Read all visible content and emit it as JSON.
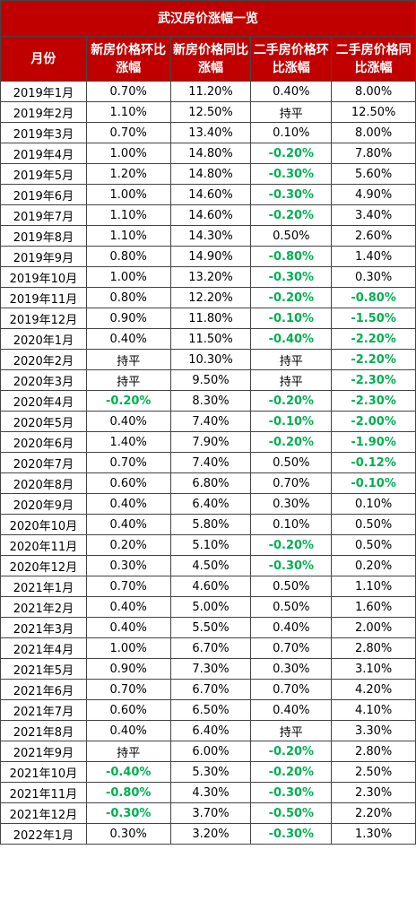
{
  "title": "武汉房价涨幅一览",
  "headers": [
    "月份",
    "新房价格环比涨幅",
    "新房价格同比涨幅",
    "二手房价格环比涨幅",
    "二手房价格同比涨幅"
  ],
  "colors": {
    "header_bg": "#c00000",
    "header_text": "#ffffff",
    "negative": "#00b050"
  },
  "rows": [
    [
      "2019年1月",
      "0.70%",
      "11.20%",
      "0.40%",
      "8.00%"
    ],
    [
      "2019年2月",
      "1.10%",
      "12.50%",
      "持平",
      "12.50%"
    ],
    [
      "2019年3月",
      "0.70%",
      "13.40%",
      "0.10%",
      "8.00%"
    ],
    [
      "2019年4月",
      "1.00%",
      "14.80%",
      "-0.20%",
      "7.80%"
    ],
    [
      "2019年5月",
      "1.20%",
      "14.80%",
      "-0.30%",
      "5.60%"
    ],
    [
      "2019年6月",
      "1.00%",
      "14.60%",
      "-0.30%",
      "4.90%"
    ],
    [
      "2019年7月",
      "1.10%",
      "14.60%",
      "-0.20%",
      "3.40%"
    ],
    [
      "2019年8月",
      "1.10%",
      "14.30%",
      "0.50%",
      "2.60%"
    ],
    [
      "2019年9月",
      "0.80%",
      "14.90%",
      "-0.80%",
      "1.40%"
    ],
    [
      "2019年10月",
      "1.00%",
      "13.20%",
      "-0.30%",
      "0.30%"
    ],
    [
      "2019年11月",
      "0.80%",
      "12.20%",
      "-0.20%",
      "-0.80%"
    ],
    [
      "2019年12月",
      "0.90%",
      "11.80%",
      "-0.10%",
      "-1.50%"
    ],
    [
      "2020年1月",
      "0.40%",
      "11.50%",
      "-0.40%",
      "-2.20%"
    ],
    [
      "2020年2月",
      "持平",
      "10.30%",
      "持平",
      "-2.20%"
    ],
    [
      "2020年3月",
      "持平",
      "9.50%",
      "持平",
      "-2.30%"
    ],
    [
      "2020年4月",
      "-0.20%",
      "8.30%",
      "-0.20%",
      "-2.30%"
    ],
    [
      "2020年5月",
      "0.40%",
      "7.40%",
      "-0.10%",
      "-2.00%"
    ],
    [
      "2020年6月",
      "1.40%",
      "7.90%",
      "-0.20%",
      "-1.90%"
    ],
    [
      "2020年7月",
      "0.70%",
      "7.40%",
      "0.50%",
      "-0.12%"
    ],
    [
      "2020年8月",
      "0.60%",
      "6.80%",
      "0.70%",
      "-0.10%"
    ],
    [
      "2020年9月",
      "0.40%",
      "6.40%",
      "0.30%",
      "0.10%"
    ],
    [
      "2020年10月",
      "0.40%",
      "5.80%",
      "0.10%",
      "0.50%"
    ],
    [
      "2020年11月",
      "0.20%",
      "5.10%",
      "-0.20%",
      "0.50%"
    ],
    [
      "2020年12月",
      "0.30%",
      "4.50%",
      "-0.30%",
      "0.20%"
    ],
    [
      "2021年1月",
      "0.70%",
      "4.60%",
      "0.50%",
      "1.10%"
    ],
    [
      "2021年2月",
      "0.40%",
      "5.00%",
      "0.50%",
      "1.60%"
    ],
    [
      "2021年3月",
      "0.40%",
      "5.50%",
      "0.40%",
      "2.00%"
    ],
    [
      "2021年4月",
      "1.00%",
      "6.70%",
      "0.70%",
      "2.80%"
    ],
    [
      "2021年5月",
      "0.90%",
      "7.30%",
      "0.30%",
      "3.10%"
    ],
    [
      "2021年6月",
      "0.70%",
      "6.70%",
      "0.70%",
      "4.20%"
    ],
    [
      "2021年7月",
      "0.60%",
      "6.50%",
      "0.40%",
      "4.10%"
    ],
    [
      "2021年8月",
      "0.40%",
      "6.40%",
      "持平",
      "3.30%"
    ],
    [
      "2021年9月",
      "持平",
      "6.00%",
      "-0.20%",
      "2.80%"
    ],
    [
      "2021年10月",
      "-0.40%",
      "5.30%",
      "-0.20%",
      "2.50%"
    ],
    [
      "2021年11月",
      "-0.80%",
      "4.30%",
      "-0.30%",
      "2.30%"
    ],
    [
      "2021年12月",
      "-0.30%",
      "3.70%",
      "-0.50%",
      "2.20%"
    ],
    [
      "2022年1月",
      "0.30%",
      "3.20%",
      "-0.30%",
      "1.30%"
    ]
  ]
}
